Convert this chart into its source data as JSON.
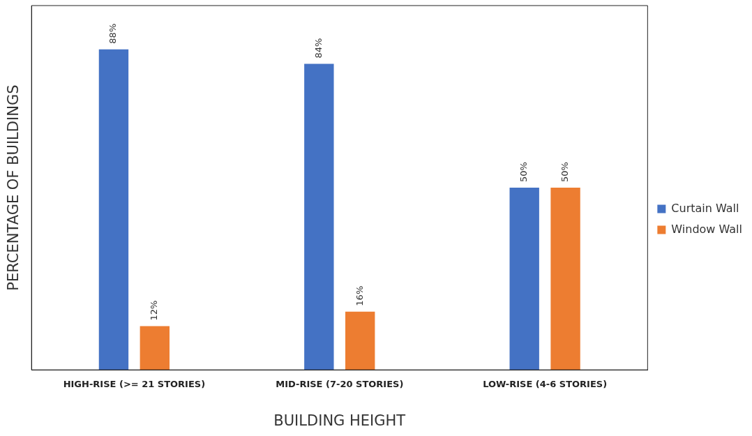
{
  "chart_data": {
    "type": "bar",
    "xlabel": "BUILDING HEIGHT",
    "ylabel": "PERCENTAGE OF BUILDINGS",
    "categories": [
      "HIGH-RISE (>= 21 STORIES)",
      "MID-RISE (7-20 STORIES)",
      "LOW-RISE (4-6 STORIES)"
    ],
    "series": [
      {
        "name": "Curtain Wall",
        "color": "#4472c4",
        "values": [
          88,
          84,
          50
        ],
        "value_labels": [
          "88%",
          "84%",
          "50%"
        ]
      },
      {
        "name": "Window Wall",
        "color": "#ed7d31",
        "values": [
          12,
          16,
          50
        ],
        "value_labels": [
          "12%",
          "16%",
          "50%"
        ]
      }
    ],
    "ylim": [
      0,
      100
    ],
    "tick_labels": "x",
    "grid": false,
    "legend": "right"
  }
}
